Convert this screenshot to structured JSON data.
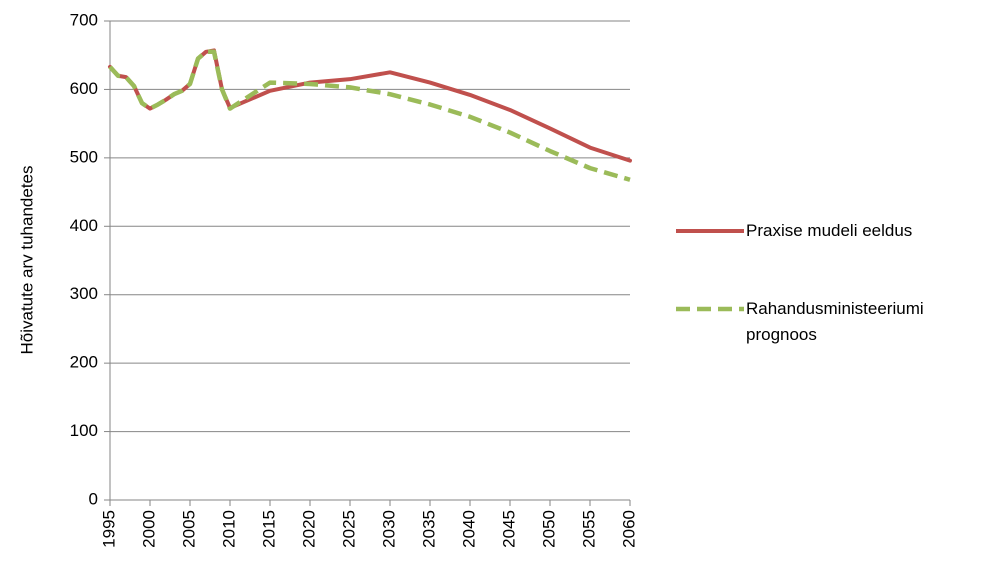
{
  "chart_data": {
    "type": "line",
    "y_label": "Hõivatute arv  tuhandetes",
    "x": [
      1995,
      1996,
      1997,
      1998,
      1999,
      2000,
      2001,
      2002,
      2003,
      2004,
      2005,
      2006,
      2007,
      2008,
      2009,
      2010,
      2015,
      2020,
      2025,
      2030,
      2035,
      2040,
      2045,
      2050,
      2055,
      2060
    ],
    "series": [
      {
        "name": "Praxise mudeli eeldus",
        "color": "#c0504d",
        "dash": false,
        "values": [
          633,
          620,
          618,
          605,
          580,
          572,
          578,
          585,
          593,
          598,
          608,
          645,
          655,
          657,
          600,
          573,
          598,
          610,
          615,
          625,
          610,
          592,
          570,
          543,
          515,
          496
        ]
      },
      {
        "name": "Rahandusministeeriumi prognoos",
        "color": "#9bbb59",
        "dash": true,
        "values": [
          633,
          620,
          618,
          605,
          580,
          572,
          578,
          585,
          593,
          598,
          608,
          645,
          655,
          655,
          600,
          572,
          610,
          608,
          603,
          593,
          578,
          560,
          537,
          510,
          485,
          468
        ]
      }
    ],
    "xlim": [
      1995,
      2060
    ],
    "xticks": [
      1995,
      2000,
      2005,
      2010,
      2015,
      2020,
      2025,
      2030,
      2035,
      2040,
      2045,
      2050,
      2055,
      2060
    ],
    "ylim": [
      0,
      700
    ],
    "yticks": [
      0,
      100,
      200,
      300,
      400,
      500,
      600,
      700
    ],
    "grid": true,
    "legend": "right"
  }
}
